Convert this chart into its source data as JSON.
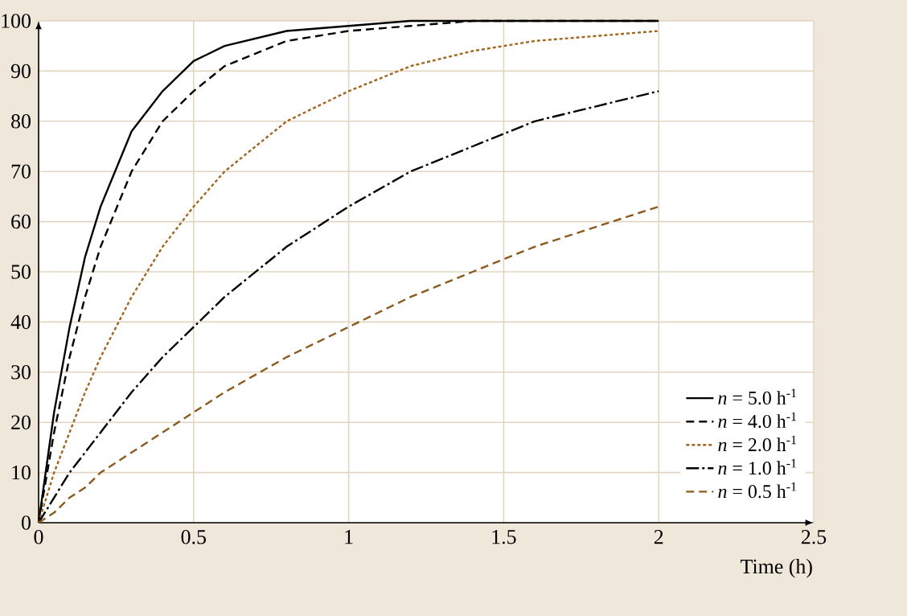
{
  "chart_data": {
    "type": "line",
    "xlabel": "Time (h)",
    "x": [
      0,
      0.05,
      0.1,
      0.15,
      0.2,
      0.3,
      0.4,
      0.5,
      0.6,
      0.8,
      1.0,
      1.2,
      1.4,
      1.6,
      1.8,
      2.0
    ],
    "series": [
      {
        "name": "*n* = 5.0 h$^{-1}$",
        "color": "#000000",
        "line_style": "solid",
        "values": [
          0,
          22,
          39,
          53,
          63,
          78,
          86,
          92,
          95,
          98,
          99,
          100,
          100,
          100,
          100,
          100
        ]
      },
      {
        "name": "*n* = 4.0 h$^{-1}$",
        "color": "#000000",
        "line_style": "dashed",
        "values": [
          0,
          18,
          33,
          45,
          55,
          70,
          80,
          86,
          91,
          96,
          98,
          99,
          100,
          100,
          100,
          100
        ]
      },
      {
        "name": "*n* = 2.0 h$^{-1}$",
        "color": "#a0661f",
        "line_style": "dotted",
        "values": [
          0,
          10,
          18,
          26,
          33,
          45,
          55,
          63,
          70,
          80,
          86,
          91,
          94,
          96,
          97,
          98
        ]
      },
      {
        "name": "*n* = 1.0 h$^{-1}$",
        "color": "#000000",
        "line_style": "dashdot",
        "values": [
          0,
          5,
          10,
          14,
          18,
          26,
          33,
          39,
          45,
          55,
          63,
          70,
          75,
          80,
          83,
          86
        ]
      },
      {
        "name": "*n* = 0.5 h$^{-1}$",
        "color": "#8b5a1e",
        "line_style": "dashed",
        "values": [
          0,
          2,
          5,
          7,
          10,
          14,
          18,
          22,
          26,
          33,
          39,
          45,
          50,
          55,
          59,
          63
        ]
      }
    ],
    "xlim": [
      0,
      2.5
    ],
    "ylim": [
      0,
      100
    ],
    "xticks": [
      0,
      0.5,
      1,
      1.5,
      2,
      2.5
    ],
    "yticks": [
      0,
      10,
      20,
      30,
      40,
      50,
      60,
      70,
      80,
      90,
      100
    ],
    "grid": true,
    "legend": "bottom right",
    "marker": "none"
  }
}
